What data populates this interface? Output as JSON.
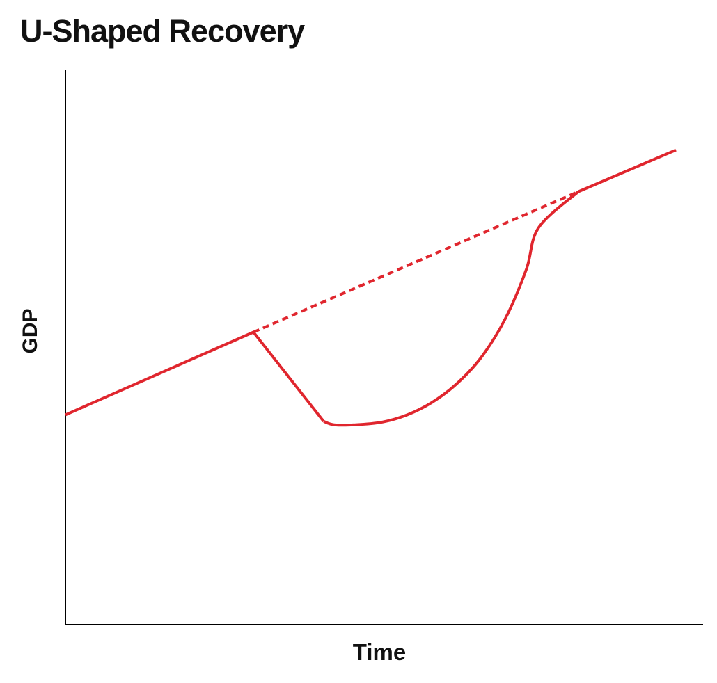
{
  "chart_data": {
    "type": "line",
    "title": "U-Shaped Recovery",
    "xlabel": "Time",
    "ylabel": "GDP",
    "xlim": [
      0,
      100
    ],
    "ylim": [
      0,
      100
    ],
    "grid": false,
    "legend": "none",
    "color": "#e0262e",
    "series": [
      {
        "style": "solid",
        "points": [
          [
            0,
            37.8
          ],
          [
            30.8,
            52.7
          ]
        ]
      },
      {
        "style": "solid",
        "points": [
          [
            30.8,
            52.7
          ],
          [
            42.3,
            36.6
          ]
        ]
      },
      {
        "style": "solid",
        "curve": "u",
        "points": [
          [
            42.3,
            36.6
          ],
          [
            44,
            36
          ],
          [
            47.5,
            36
          ],
          [
            52,
            36.5
          ],
          [
            56,
            37.8
          ],
          [
            60,
            40
          ],
          [
            64,
            43.3
          ],
          [
            68,
            48
          ],
          [
            72,
            55
          ],
          [
            75.5,
            64
          ],
          [
            77.5,
            71.5
          ],
          [
            84,
            78
          ]
        ]
      },
      {
        "style": "dashed",
        "points": [
          [
            30.8,
            52.7
          ],
          [
            84,
            78
          ]
        ]
      },
      {
        "style": "solid",
        "points": [
          [
            84,
            78
          ],
          [
            100,
            85.5
          ]
        ]
      }
    ]
  }
}
